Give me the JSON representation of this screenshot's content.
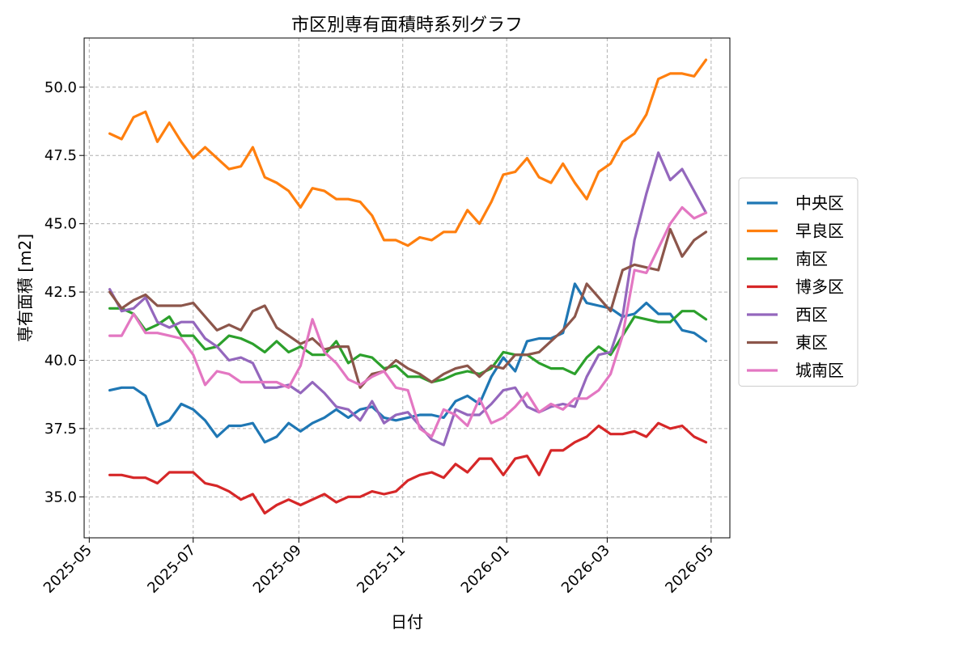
{
  "chart_data": {
    "type": "line",
    "title": "市区別専有面積時系列グラフ",
    "xlabel": "日付",
    "ylabel": "専有面積 [m2]",
    "xlim": [
      "2025-04-28",
      "2026-05-12"
    ],
    "ylim": [
      33.5,
      51.8
    ],
    "xticks": [
      "2025-05-01",
      "2025-07-01",
      "2025-09-01",
      "2025-11-01",
      "2026-01-01",
      "2026-03-01",
      "2026-05-01"
    ],
    "xtick_labels": [
      "2025-05",
      "2025-07",
      "2025-09",
      "2025-11",
      "2026-01",
      "2026-03",
      "2026-05"
    ],
    "yticks": [
      35.0,
      37.5,
      40.0,
      42.5,
      45.0,
      47.5,
      50.0
    ],
    "ytick_labels": [
      "35.0",
      "37.5",
      "40.0",
      "42.5",
      "45.0",
      "47.5",
      "50.0"
    ],
    "grid": true,
    "legend_position": "right, outside plot",
    "x_start": "2025-05-13",
    "x_step_days": 7,
    "series": [
      {
        "name": "中央区",
        "color": "#1f77b4",
        "values": [
          38.9,
          39.0,
          39.0,
          38.7,
          37.6,
          37.8,
          38.4,
          38.2,
          37.8,
          37.2,
          37.6,
          37.6,
          37.7,
          37.0,
          37.2,
          37.7,
          37.4,
          37.7,
          37.9,
          38.2,
          37.9,
          38.2,
          38.3,
          37.9,
          37.8,
          37.9,
          38.0,
          38.0,
          37.9,
          38.5,
          38.7,
          38.4,
          39.4,
          40.1,
          39.6,
          40.7,
          40.8,
          40.8,
          41.0,
          42.8,
          42.1,
          42.0,
          41.9,
          41.6,
          41.7,
          42.1,
          41.7,
          41.7,
          41.1,
          41.0,
          40.7
        ]
      },
      {
        "name": "早良区",
        "color": "#ff7f0e",
        "values": [
          48.3,
          48.1,
          48.9,
          49.1,
          48.0,
          48.7,
          48.0,
          47.4,
          47.8,
          47.4,
          47.0,
          47.1,
          47.8,
          46.7,
          46.5,
          46.2,
          45.6,
          46.3,
          46.2,
          45.9,
          45.9,
          45.8,
          45.3,
          44.4,
          44.4,
          44.2,
          44.5,
          44.4,
          44.7,
          44.7,
          45.5,
          45.0,
          45.8,
          46.8,
          46.9,
          47.4,
          46.7,
          46.5,
          47.2,
          46.5,
          45.9,
          46.9,
          47.2,
          48.0,
          48.3,
          49.0,
          50.3,
          50.5,
          50.5,
          50.4,
          51.0
        ]
      },
      {
        "name": "南区",
        "color": "#2ca02c",
        "values": [
          41.9,
          41.9,
          41.7,
          41.1,
          41.3,
          41.6,
          40.9,
          40.9,
          40.4,
          40.5,
          40.9,
          40.8,
          40.6,
          40.3,
          40.7,
          40.3,
          40.5,
          40.2,
          40.2,
          40.7,
          39.9,
          40.2,
          40.1,
          39.7,
          39.8,
          39.4,
          39.4,
          39.2,
          39.3,
          39.5,
          39.6,
          39.5,
          39.7,
          40.3,
          40.2,
          40.2,
          39.9,
          39.7,
          39.7,
          39.5,
          40.1,
          40.5,
          40.2,
          40.9,
          41.6,
          41.5,
          41.4,
          41.4,
          41.8,
          41.8,
          41.5
        ]
      },
      {
        "name": "博多区",
        "color": "#d62728",
        "values": [
          35.8,
          35.8,
          35.7,
          35.7,
          35.5,
          35.9,
          35.9,
          35.9,
          35.5,
          35.4,
          35.2,
          34.9,
          35.1,
          34.4,
          34.7,
          34.9,
          34.7,
          34.9,
          35.1,
          34.8,
          35.0,
          35.0,
          35.2,
          35.1,
          35.2,
          35.6,
          35.8,
          35.9,
          35.7,
          36.2,
          35.9,
          36.4,
          36.4,
          35.8,
          36.4,
          36.5,
          35.8,
          36.7,
          36.7,
          37.0,
          37.2,
          37.6,
          37.3,
          37.3,
          37.4,
          37.2,
          37.7,
          37.5,
          37.6,
          37.2,
          37.0
        ]
      },
      {
        "name": "西区",
        "color": "#9467bd",
        "values": [
          42.6,
          41.8,
          41.9,
          42.3,
          41.4,
          41.2,
          41.4,
          41.4,
          40.8,
          40.5,
          40.0,
          40.1,
          39.9,
          39.0,
          39.0,
          39.1,
          38.8,
          39.2,
          38.8,
          38.3,
          38.2,
          37.8,
          38.5,
          37.7,
          38.0,
          38.1,
          37.6,
          37.1,
          36.9,
          38.2,
          38.0,
          38.0,
          38.4,
          38.9,
          39.0,
          38.3,
          38.1,
          38.3,
          38.4,
          38.3,
          39.4,
          40.2,
          40.3,
          41.6,
          44.4,
          46.1,
          47.6,
          46.6,
          47.0,
          46.2,
          45.4
        ]
      },
      {
        "name": "東区",
        "color": "#8c564b",
        "values": [
          42.5,
          41.9,
          42.2,
          42.4,
          42.0,
          42.0,
          42.0,
          42.1,
          41.6,
          41.1,
          41.3,
          41.1,
          41.8,
          42.0,
          41.2,
          40.9,
          40.6,
          40.8,
          40.4,
          40.5,
          40.5,
          39.0,
          39.5,
          39.6,
          40.0,
          39.7,
          39.5,
          39.2,
          39.5,
          39.7,
          39.8,
          39.4,
          39.8,
          39.7,
          40.2,
          40.2,
          40.3,
          40.7,
          41.1,
          41.6,
          42.8,
          42.3,
          41.8,
          43.3,
          43.5,
          43.4,
          43.3,
          44.8,
          43.8,
          44.4,
          44.7
        ]
      },
      {
        "name": "城南区",
        "color": "#e377c2",
        "values": [
          40.9,
          40.9,
          41.7,
          41.0,
          41.0,
          40.9,
          40.8,
          40.2,
          39.1,
          39.6,
          39.5,
          39.2,
          39.2,
          39.2,
          39.2,
          39.0,
          39.8,
          41.5,
          40.3,
          39.9,
          39.3,
          39.1,
          39.4,
          39.6,
          39.0,
          38.9,
          37.5,
          37.2,
          38.2,
          38.0,
          37.6,
          38.6,
          37.7,
          37.9,
          38.3,
          38.8,
          38.1,
          38.4,
          38.2,
          38.6,
          38.6,
          38.9,
          39.5,
          40.9,
          43.3,
          43.2,
          44.1,
          45.0,
          45.6,
          45.2,
          45.4
        ]
      }
    ]
  }
}
